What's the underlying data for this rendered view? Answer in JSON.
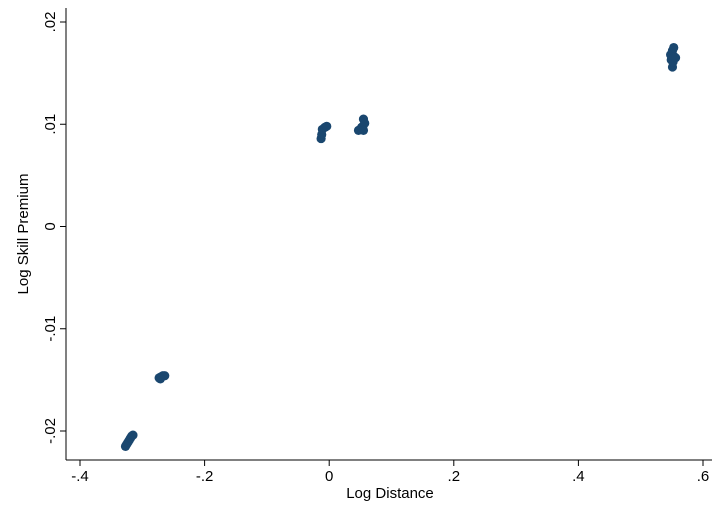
{
  "chart_data": {
    "type": "scatter",
    "xlabel": "Log Distance",
    "ylabel": "Log Skill Premium",
    "xlim": [
      -0.4,
      0.6
    ],
    "ylim": [
      -0.022,
      0.02
    ],
    "x_ticks": [
      -0.4,
      -0.2,
      0,
      0.2,
      0.4,
      0.6
    ],
    "x_tick_labels": [
      "-.4",
      "-.2",
      "0",
      ".2",
      ".4",
      ".6"
    ],
    "y_ticks": [
      -0.02,
      -0.01,
      0,
      0.01,
      0.02
    ],
    "y_tick_labels": [
      "-.02",
      "-.01",
      "0",
      ".01",
      ".02"
    ],
    "grid": false,
    "legend": "none",
    "marker_color": "#1a476f",
    "points": [
      {
        "x": -0.327,
        "y": -0.0215
      },
      {
        "x": -0.325,
        "y": -0.0213
      },
      {
        "x": -0.323,
        "y": -0.0211
      },
      {
        "x": -0.321,
        "y": -0.0209
      },
      {
        "x": -0.319,
        "y": -0.0207
      },
      {
        "x": -0.317,
        "y": -0.0205
      },
      {
        "x": -0.315,
        "y": -0.0204
      },
      {
        "x": -0.273,
        "y": -0.0148
      },
      {
        "x": -0.27,
        "y": -0.0147
      },
      {
        "x": -0.267,
        "y": -0.0146
      },
      {
        "x": -0.264,
        "y": -0.0146
      },
      {
        "x": -0.271,
        "y": -0.0149
      },
      {
        "x": -0.013,
        "y": 0.0086
      },
      {
        "x": -0.012,
        "y": 0.009
      },
      {
        "x": -0.011,
        "y": 0.0095
      },
      {
        "x": -0.007,
        "y": 0.0097
      },
      {
        "x": -0.004,
        "y": 0.0098
      },
      {
        "x": 0.047,
        "y": 0.0094
      },
      {
        "x": 0.05,
        "y": 0.0095
      },
      {
        "x": 0.052,
        "y": 0.0097
      },
      {
        "x": 0.054,
        "y": 0.0098
      },
      {
        "x": 0.055,
        "y": 0.0105
      },
      {
        "x": 0.057,
        "y": 0.0101
      },
      {
        "x": 0.055,
        "y": 0.0094
      },
      {
        "x": 0.548,
        "y": 0.0168
      },
      {
        "x": 0.549,
        "y": 0.0163
      },
      {
        "x": 0.551,
        "y": 0.0156
      },
      {
        "x": 0.551,
        "y": 0.0172
      },
      {
        "x": 0.552,
        "y": 0.0161
      },
      {
        "x": 0.553,
        "y": 0.0175
      },
      {
        "x": 0.554,
        "y": 0.0166
      },
      {
        "x": 0.556,
        "y": 0.0165
      }
    ]
  }
}
